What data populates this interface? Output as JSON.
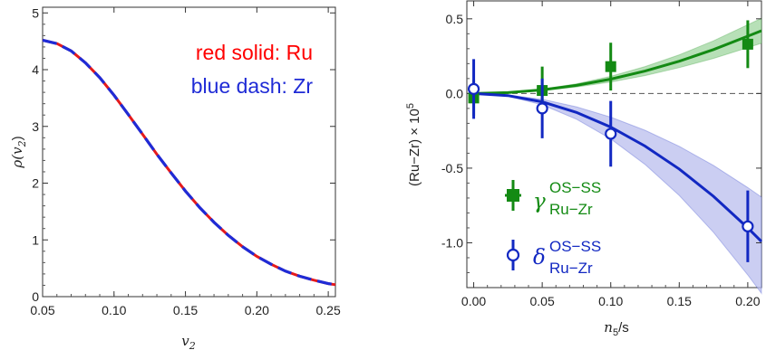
{
  "chart_data": [
    {
      "type": "line",
      "xlabel_main": "v",
      "xlabel_sub": "2",
      "ylabel_main": "ρ(v",
      "ylabel_sub": "2",
      "ylabel_close": ")",
      "xlim": [
        0.05,
        0.255
      ],
      "ylim": [
        0,
        5.1
      ],
      "xticks": [
        0.05,
        0.1,
        0.15,
        0.2,
        0.25
      ],
      "xtick_labels": [
        "0.05",
        "0.10",
        "0.15",
        "0.20",
        "0.25"
      ],
      "yticks": [
        0,
        1,
        2,
        3,
        4,
        5
      ],
      "ytick_labels": [
        "0",
        "1",
        "2",
        "3",
        "4",
        "5"
      ],
      "annotations": [
        {
          "text": "red solid: Ru",
          "color": "#ff0000"
        },
        {
          "text": "blue dash: Zr",
          "color": "#1f2bd6"
        }
      ],
      "series": [
        {
          "name": "Ru",
          "style": "solid",
          "color": "#e41a1c",
          "x": [
            0.05,
            0.06,
            0.07,
            0.08,
            0.09,
            0.1,
            0.11,
            0.12,
            0.13,
            0.14,
            0.15,
            0.16,
            0.17,
            0.18,
            0.19,
            0.2,
            0.21,
            0.22,
            0.23,
            0.24,
            0.25,
            0.255
          ],
          "values": [
            4.52,
            4.46,
            4.33,
            4.12,
            3.86,
            3.55,
            3.21,
            2.86,
            2.51,
            2.18,
            1.86,
            1.57,
            1.31,
            1.08,
            0.88,
            0.71,
            0.57,
            0.45,
            0.36,
            0.29,
            0.23,
            0.21
          ]
        },
        {
          "name": "Zr",
          "style": "dash",
          "color": "#1f2bd6",
          "x": [
            0.05,
            0.06,
            0.07,
            0.08,
            0.09,
            0.1,
            0.11,
            0.12,
            0.13,
            0.14,
            0.15,
            0.16,
            0.17,
            0.18,
            0.19,
            0.2,
            0.21,
            0.22,
            0.23,
            0.24,
            0.25,
            0.255
          ],
          "values": [
            4.52,
            4.46,
            4.33,
            4.12,
            3.86,
            3.55,
            3.21,
            2.86,
            2.51,
            2.18,
            1.86,
            1.57,
            1.31,
            1.08,
            0.88,
            0.71,
            0.57,
            0.45,
            0.36,
            0.29,
            0.23,
            0.21
          ]
        }
      ]
    },
    {
      "type": "scatter",
      "xlabel_main": "n",
      "xlabel_sub": "5",
      "xlabel_tail": "/s",
      "ylabel": "(Ru−Zr) × 10",
      "ylabel_sup": "5",
      "xlim": [
        -0.005,
        0.21
      ],
      "ylim": [
        -1.3,
        0.62
      ],
      "xticks": [
        0.0,
        0.05,
        0.1,
        0.15,
        0.2
      ],
      "xtick_labels": [
        "0.00",
        "0.05",
        "0.10",
        "0.15",
        "0.20"
      ],
      "yticks": [
        0.5,
        0.0,
        -0.5,
        -1.0
      ],
      "ytick_labels": [
        "0.5",
        "0.0",
        "-0.5",
        "-1.0"
      ],
      "series": [
        {
          "name_symbol": "γ",
          "name_sup": "OS−SS",
          "name_sub": "Ru−Zr",
          "color": "#138a13",
          "band_color": "#9fd69f",
          "marker": "square",
          "x": [
            0.0,
            0.05,
            0.1,
            0.2
          ],
          "values": [
            -0.03,
            0.02,
            0.18,
            0.33
          ],
          "err": [
            0.12,
            0.16,
            0.16,
            0.16
          ],
          "fit_x": [
            0.0,
            0.025,
            0.05,
            0.075,
            0.1,
            0.125,
            0.15,
            0.175,
            0.2,
            0.21
          ],
          "fit_y": [
            0.0,
            0.006,
            0.024,
            0.054,
            0.096,
            0.15,
            0.216,
            0.294,
            0.384,
            0.42
          ],
          "band_lo": [
            0.0,
            0.005,
            0.019,
            0.043,
            0.077,
            0.12,
            0.173,
            0.235,
            0.307,
            0.336
          ],
          "band_hi": [
            0.0,
            0.007,
            0.029,
            0.065,
            0.115,
            0.18,
            0.259,
            0.353,
            0.461,
            0.504
          ]
        },
        {
          "name_symbol": "δ",
          "name_sup": "OS−SS",
          "name_sub": "Ru−Zr",
          "color": "#1228c2",
          "band_color": "#b9bdee",
          "marker": "open-circle",
          "x": [
            0.0,
            0.05,
            0.1,
            0.2
          ],
          "values": [
            0.03,
            -0.1,
            -0.27,
            -0.89
          ],
          "err": [
            0.2,
            0.2,
            0.22,
            0.24
          ],
          "fit_x": [
            0.0,
            0.025,
            0.05,
            0.075,
            0.1,
            0.125,
            0.15,
            0.175,
            0.2,
            0.21
          ],
          "fit_y": [
            0.0,
            -0.014,
            -0.056,
            -0.127,
            -0.225,
            -0.352,
            -0.506,
            -0.689,
            -0.9,
            -0.992
          ],
          "band_lo": [
            0.0,
            -0.019,
            -0.076,
            -0.172,
            -0.304,
            -0.475,
            -0.683,
            -0.93,
            -1.215,
            -1.339
          ],
          "band_hi": [
            0.0,
            -0.01,
            -0.039,
            -0.089,
            -0.158,
            -0.246,
            -0.354,
            -0.482,
            -0.63,
            -0.694
          ]
        }
      ]
    }
  ]
}
